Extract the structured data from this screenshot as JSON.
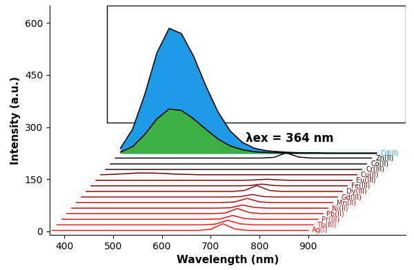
{
  "chart_data": {
    "type": "waterfall",
    "x_label": "Wavelength (nm)",
    "y_label": "Intensity (a.u.)",
    "annotations": [
      "λex = 364 nm"
    ],
    "x": [
      375,
      400,
      425,
      450,
      475,
      500,
      525,
      550,
      575,
      600,
      625,
      650,
      675,
      700,
      725,
      750,
      775,
      800,
      825,
      850,
      875,
      900
    ],
    "xlim": [
      370,
      1100
    ],
    "xticks": [
      400,
      500,
      600,
      700,
      800,
      900
    ],
    "ylim": [
      -10,
      650
    ],
    "yticks": [
      0,
      150,
      300,
      450,
      600
    ],
    "series": [
      {
        "name": "Ag(I)",
        "type": "line",
        "color": "#ff1a1a",
        "values": [
          3,
          3,
          3,
          3,
          3,
          3,
          3,
          3,
          3,
          3,
          3,
          3,
          3,
          6,
          22,
          7,
          3,
          3,
          3,
          3,
          3,
          3
        ]
      },
      {
        "name": "Tb(III)",
        "type": "line",
        "color": "#f01818",
        "values": [
          3,
          3,
          3,
          3,
          3,
          3,
          3,
          3,
          3,
          3,
          3,
          3,
          3,
          5,
          16,
          6,
          3,
          3,
          3,
          3,
          3,
          3
        ]
      },
      {
        "name": "Pr(III)",
        "type": "line",
        "color": "#e01515",
        "values": [
          3,
          3,
          3,
          3,
          3,
          3,
          3,
          3,
          3,
          3,
          3,
          3,
          3,
          4,
          14,
          5,
          3,
          3,
          3,
          3,
          3,
          3
        ]
      },
      {
        "name": "Pb(II)",
        "type": "line",
        "color": "#d01313",
        "values": [
          3,
          3,
          3,
          3,
          3,
          3,
          3,
          3,
          3,
          3,
          3,
          3,
          3,
          5,
          18,
          6,
          3,
          3,
          3,
          3,
          3,
          3
        ]
      },
      {
        "name": "Ni(II)",
        "type": "line",
        "color": "#c01111",
        "values": [
          3,
          3,
          3,
          3,
          3,
          3,
          3,
          3,
          3,
          3,
          3,
          3,
          3,
          4,
          12,
          5,
          3,
          3,
          3,
          3,
          3,
          3
        ]
      },
      {
        "name": "Mn(II)",
        "type": "line",
        "color": "#b01010",
        "values": [
          3,
          3,
          3,
          3,
          3,
          3,
          3,
          3,
          3,
          3,
          3,
          3,
          3,
          5,
          15,
          5,
          3,
          3,
          3,
          3,
          3,
          3
        ]
      },
      {
        "name": "Gd(III)",
        "type": "line",
        "color": "#a00e0e",
        "values": [
          3,
          3,
          3,
          3,
          3,
          3,
          3,
          3,
          3,
          3,
          3,
          3,
          3,
          4,
          10,
          4,
          3,
          3,
          3,
          3,
          3,
          3
        ]
      },
      {
        "name": "Dy(III)",
        "type": "line",
        "color": "#900c0c",
        "values": [
          3,
          3,
          3,
          3,
          3,
          3,
          3,
          3,
          3,
          3,
          3,
          3,
          3,
          6,
          20,
          6,
          3,
          3,
          3,
          3,
          3,
          3
        ]
      },
      {
        "name": "Fe(III)",
        "type": "line",
        "color": "#800a0a",
        "values": [
          3,
          3,
          3,
          3,
          3,
          3,
          3,
          3,
          3,
          3,
          3,
          3,
          3,
          4,
          8,
          4,
          3,
          3,
          3,
          3,
          3,
          3
        ]
      },
      {
        "name": "Eu(III)",
        "type": "line",
        "color": "#700808",
        "values": [
          3,
          3,
          3,
          3,
          3,
          3,
          3,
          3,
          3,
          3,
          3,
          3,
          3,
          4,
          6,
          4,
          3,
          3,
          3,
          3,
          3,
          3
        ]
      },
      {
        "name": "Cu(II)",
        "type": "line",
        "color": "#600606",
        "values": [
          3,
          4,
          6,
          8,
          8,
          7,
          5,
          4,
          3,
          3,
          3,
          3,
          3,
          3,
          3,
          3,
          3,
          3,
          3,
          3,
          3,
          3
        ]
      },
      {
        "name": "Cr(III)",
        "type": "line",
        "color": "#400404",
        "values": [
          3,
          3,
          3,
          3,
          3,
          3,
          3,
          3,
          3,
          3,
          3,
          3,
          3,
          3,
          3,
          3,
          3,
          3,
          3,
          3,
          3,
          3
        ]
      },
      {
        "name": "Co(II)",
        "type": "line",
        "color": "#200202",
        "values": [
          3,
          3,
          3,
          3,
          3,
          3,
          3,
          3,
          3,
          3,
          3,
          3,
          3,
          3,
          3,
          3,
          3,
          3,
          3,
          3,
          3,
          3
        ]
      },
      {
        "name": "Zn(II)",
        "type": "line",
        "color": "#000000",
        "values": [
          3,
          3,
          3,
          3,
          3,
          3,
          3,
          3,
          3,
          3,
          3,
          3,
          3,
          5,
          18,
          6,
          3,
          3,
          3,
          3,
          3,
          3
        ]
      },
      {
        "name": "Cd(II)",
        "type": "area",
        "color": "#1e9be6",
        "values": [
          15,
          70,
          170,
          290,
          360,
          345,
          280,
          195,
          120,
          65,
          32,
          15,
          8,
          5,
          3,
          2,
          2,
          1,
          1,
          1,
          1,
          1
        ]
      },
      {
        "name": null,
        "type": "area",
        "color": "#3cb043",
        "values": [
          4,
          20,
          55,
          100,
          128,
          124,
          100,
          70,
          42,
          22,
          11,
          5,
          3,
          2,
          1,
          1,
          1,
          1,
          1,
          1,
          1,
          1
        ]
      }
    ]
  }
}
